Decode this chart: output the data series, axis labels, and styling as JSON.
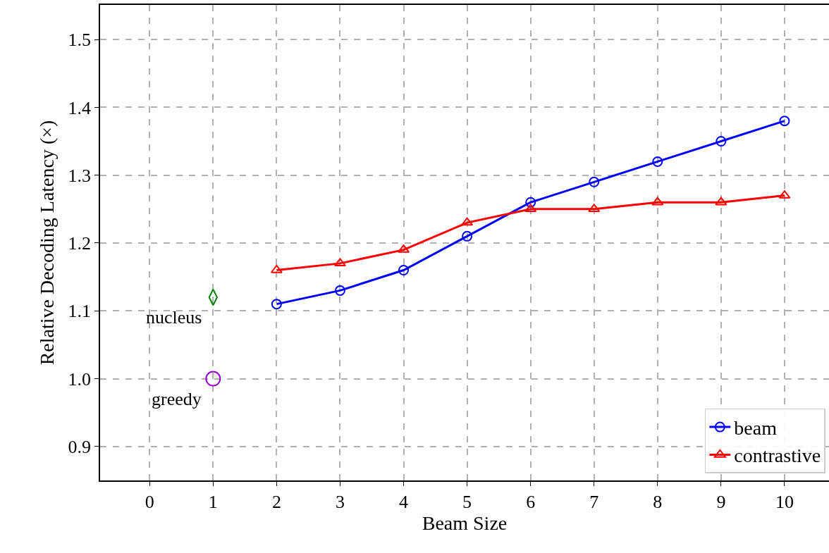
{
  "chart_data": {
    "type": "line",
    "xlabel": "Beam Size",
    "ylabel": "Relative Decoding Latency (×)",
    "xlim": [
      -0.78,
      10.7
    ],
    "ylim": [
      0.85,
      1.551
    ],
    "xticks": [
      0,
      1,
      2,
      3,
      4,
      5,
      6,
      7,
      8,
      9,
      10
    ],
    "yticks": [
      0.9,
      {
        "value": 1.0,
        "label": "1.0"
      },
      1.1,
      1.2,
      1.3,
      1.4,
      1.5
    ],
    "grid": true,
    "legend": "bottom right",
    "line_style": "solid",
    "series": [
      {
        "name": "beam",
        "color": "#0000ff",
        "marker": "circle",
        "x": [
          2,
          3,
          4,
          5,
          6,
          7,
          8,
          9,
          10
        ],
        "values": [
          1.11,
          1.13,
          1.16,
          1.21,
          1.26,
          1.29,
          1.32,
          1.35,
          1.38
        ]
      },
      {
        "name": "contrastive",
        "color": "#ff0000",
        "marker": "triangle",
        "x": [
          2,
          3,
          4,
          5,
          6,
          7,
          8,
          9,
          10
        ],
        "values": [
          1.16,
          1.17,
          1.19,
          1.23,
          1.25,
          1.25,
          1.26,
          1.26,
          1.27
        ]
      },
      {
        "name": "nucleus",
        "type": "scatter",
        "color": "#008000",
        "marker": "diamond",
        "x": [
          1
        ],
        "values": [
          1.12
        ]
      },
      {
        "name": "greedy",
        "type": "scatter",
        "color": "#9400d3",
        "marker": "circle",
        "x": [
          1
        ],
        "values": [
          1.0
        ]
      }
    ]
  }
}
